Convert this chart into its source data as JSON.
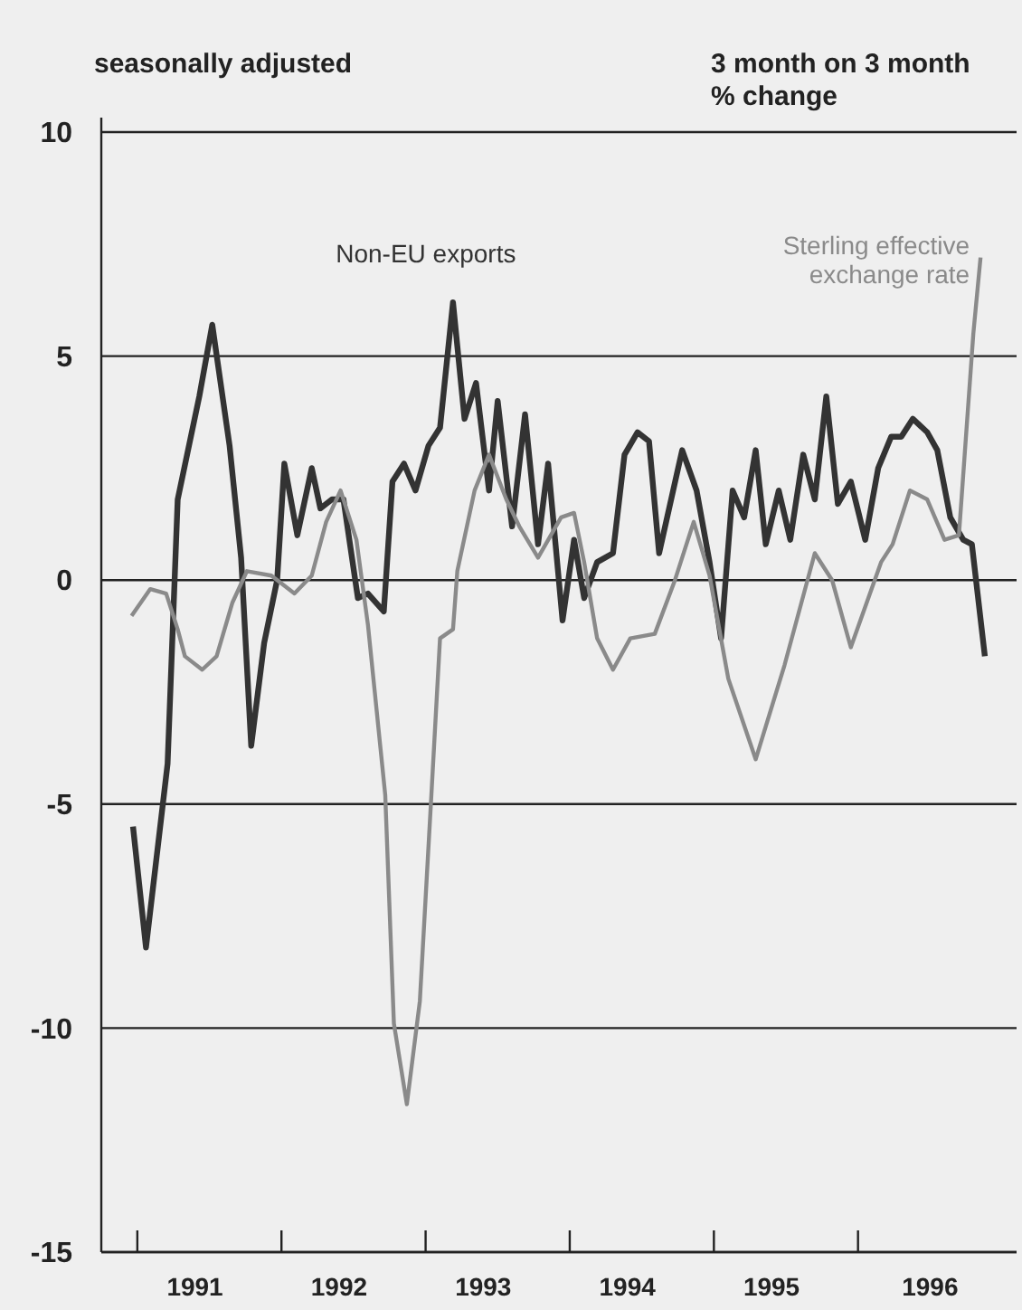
{
  "chart_data": {
    "type": "line",
    "annotations": [
      "seasonally adjusted",
      "3 month on 3 month\n% change"
    ],
    "series": [
      {
        "name": "Non-EU exports",
        "color": "#333333",
        "x": [
          1990.97,
          1991.06,
          1991.21,
          1991.28,
          1991.43,
          1991.52,
          1991.64,
          1991.72,
          1991.79,
          1991.88,
          1991.97,
          1992.02,
          1992.11,
          1992.21,
          1992.27,
          1992.35,
          1992.43,
          1992.53,
          1992.6,
          1992.71,
          1992.77,
          1992.85,
          1992.93,
          1993.02,
          1993.1,
          1993.19,
          1993.27,
          1993.35,
          1993.44,
          1993.5,
          1993.6,
          1993.69,
          1993.78,
          1993.85,
          1993.95,
          1994.03,
          1994.1,
          1994.19,
          1994.3,
          1994.38,
          1994.47,
          1994.55,
          1994.62,
          1994.78,
          1994.88,
          1994.97,
          1995.05,
          1995.13,
          1995.21,
          1995.29,
          1995.36,
          1995.45,
          1995.53,
          1995.62,
          1995.7,
          1995.78,
          1995.86,
          1995.95,
          1996.05,
          1996.14,
          1996.23,
          1996.3,
          1996.38,
          1996.48,
          1996.55,
          1996.64,
          1996.73,
          1996.79,
          1996.88
        ],
        "values": [
          -5.5,
          -8.2,
          -4.1,
          1.8,
          4.1,
          5.7,
          3.0,
          0.5,
          -3.7,
          -1.4,
          0,
          2.6,
          1.0,
          2.5,
          1.6,
          1.8,
          1.8,
          -0.4,
          -0.3,
          -0.7,
          2.2,
          2.6,
          2.0,
          3.0,
          3.4,
          6.2,
          3.6,
          4.4,
          2.0,
          4.0,
          1.2,
          3.7,
          0.8,
          2.6,
          -0.9,
          0.9,
          -0.4,
          0.4,
          0.6,
          2.8,
          3.3,
          3.1,
          0.6,
          2.9,
          2.0,
          0.4,
          -1.3,
          2.0,
          1.4,
          2.9,
          0.8,
          2.0,
          0.9,
          2.8,
          1.8,
          4.1,
          1.7,
          2.2,
          0.9,
          2.5,
          3.2,
          3.2,
          3.6,
          3.3,
          2.9,
          1.4,
          0.9,
          0.8,
          -1.7
        ]
      },
      {
        "name": "Sterling effective\nexchange rate",
        "color": "#8a8a8a",
        "x": [
          1990.96,
          1991.09,
          1991.2,
          1991.28,
          1991.33,
          1991.45,
          1991.55,
          1991.66,
          1991.76,
          1991.93,
          1992.09,
          1992.21,
          1992.31,
          1992.41,
          1992.52,
          1992.6,
          1992.72,
          1992.78,
          1992.87,
          1992.96,
          1993.04,
          1993.1,
          1993.19,
          1993.22,
          1993.34,
          1993.44,
          1993.56,
          1993.65,
          1993.78,
          1993.94,
          1994.03,
          1994.1,
          1994.19,
          1994.3,
          1994.42,
          1994.59,
          1994.73,
          1994.86,
          1994.97,
          1995.1,
          1995.29,
          1995.49,
          1995.7,
          1995.82,
          1995.95,
          1996.16,
          1996.24,
          1996.36,
          1996.48,
          1996.6,
          1996.7,
          1996.8,
          1996.85
        ],
        "values": [
          -0.8,
          -0.2,
          -0.3,
          -1.1,
          -1.7,
          -2.0,
          -1.7,
          -0.5,
          0.2,
          0.1,
          -0.3,
          0.1,
          1.3,
          2.0,
          0.9,
          -1.0,
          -4.8,
          -9.9,
          -11.7,
          -9.4,
          -4.8,
          -1.3,
          -1.1,
          0.2,
          2.0,
          2.8,
          1.8,
          1.2,
          0.5,
          1.4,
          1.5,
          0.4,
          -1.3,
          -2.0,
          -1.3,
          -1.2,
          0,
          1.3,
          0.1,
          -2.2,
          -4.0,
          -1.9,
          0.6,
          0,
          -1.5,
          0.4,
          0.8,
          2.0,
          1.8,
          0.9,
          1.0,
          5.5,
          7.2
        ]
      }
    ],
    "xlim": [
      1990.75,
      1997.1
    ],
    "xticks": [
      {
        "value": 1991,
        "label": null
      },
      {
        "value": 1992,
        "label": null
      },
      {
        "value": 1993,
        "label": null
      },
      {
        "value": 1994,
        "label": null
      },
      {
        "value": 1995,
        "label": null
      },
      {
        "value": 1996,
        "label": null
      },
      {
        "value": 1991.4,
        "label": "1991"
      },
      {
        "value": 1992.4,
        "label": "1992"
      },
      {
        "value": 1993.4,
        "label": "1993"
      },
      {
        "value": 1994.4,
        "label": "1994"
      },
      {
        "value": 1995.4,
        "label": "1995"
      },
      {
        "value": 1996.5,
        "label": "1996"
      }
    ],
    "ylim": [
      -15,
      10
    ],
    "yticks": [
      -15,
      -10,
      -5,
      0,
      5,
      10
    ],
    "grid": "y"
  }
}
